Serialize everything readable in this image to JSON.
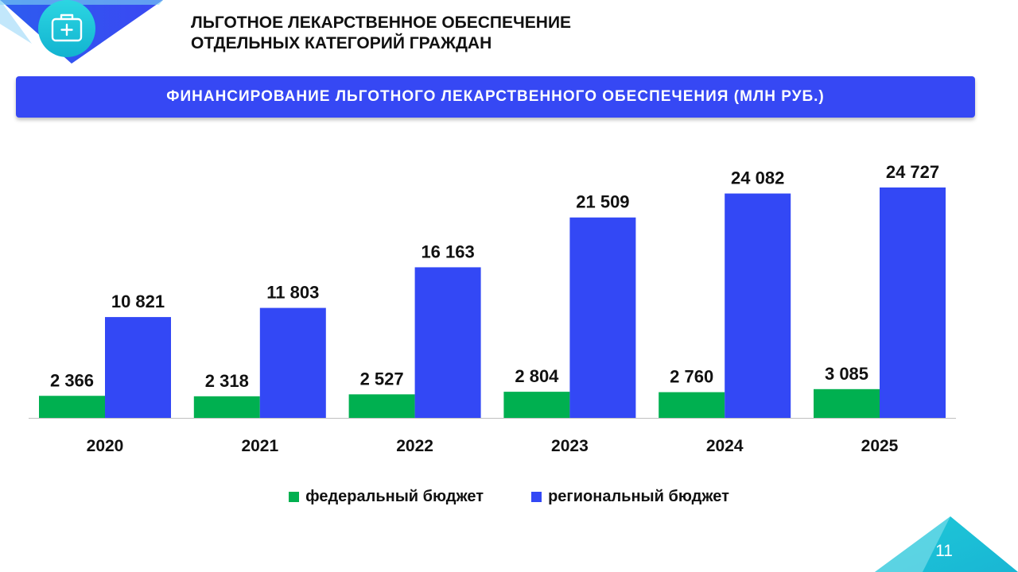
{
  "header": {
    "title_line1": "ЛЬГОТНОЕ ЛЕКАРСТВЕННОЕ ОБЕСПЕЧЕНИЕ",
    "title_line2": "ОТДЕЛЬНЫХ КАТЕГОРИЙ ГРАЖДАН",
    "icon": "medical-kit-icon"
  },
  "banner": {
    "text": "ФИНАНСИРОВАНИЕ  ЛЬГОТНОГО  ЛЕКАРСТВЕННОГО  ОБЕСПЕЧЕНИЯ  (МЛН РУБ.)"
  },
  "colors": {
    "federal": "#00b050",
    "regional": "#3348f5",
    "banner": "#3648f4",
    "accent_cyan": "#1ec8d8"
  },
  "chart_data": {
    "type": "bar",
    "categories": [
      "2020",
      "2021",
      "2022",
      "2023",
      "2024",
      "2025"
    ],
    "series": [
      {
        "name": "федеральный бюджет",
        "values": [
          2366,
          2318,
          2527,
          2804,
          2760,
          3085
        ],
        "labels": [
          "2 366",
          "2 318",
          "2 527",
          "2 804",
          "2 760",
          "3 085"
        ]
      },
      {
        "name": "региональный бюджет",
        "values": [
          10821,
          11803,
          16163,
          21509,
          24082,
          24727
        ],
        "labels": [
          "10 821",
          "11 803",
          "16 163",
          "21 509",
          "24 082",
          "24 727"
        ]
      }
    ],
    "title": "",
    "xlabel": "",
    "ylabel": "",
    "ylim": [
      0,
      24727
    ],
    "grid": false,
    "legend": "bottom"
  },
  "footer": {
    "page_number": "11"
  }
}
